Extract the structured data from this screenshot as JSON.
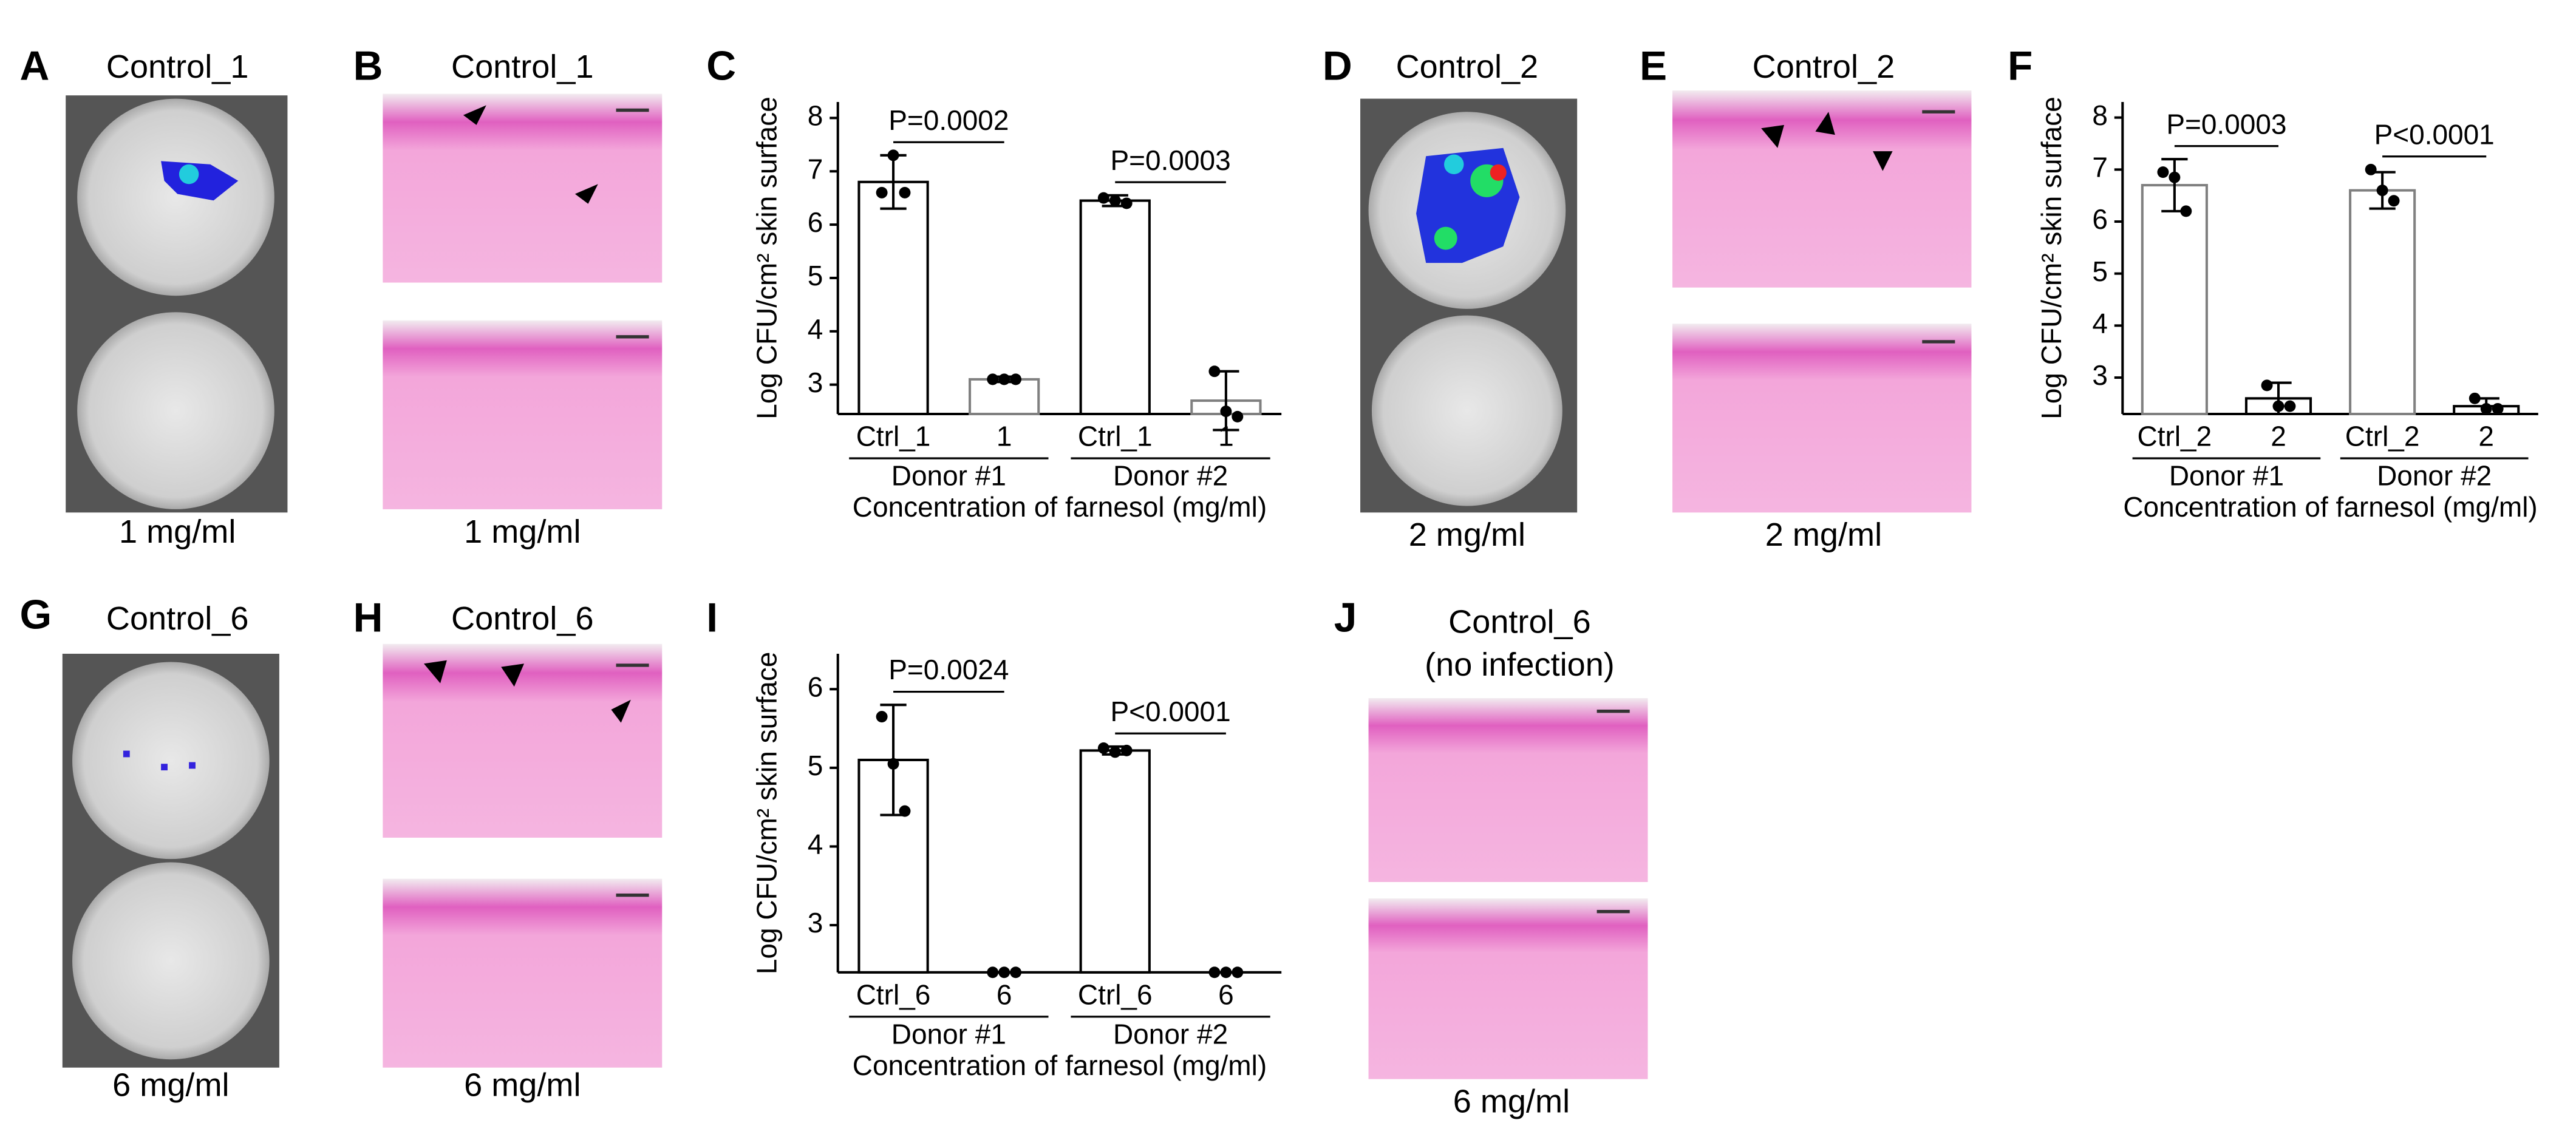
{
  "chart_data": [
    {
      "type": "bar",
      "panel": "C",
      "ylabel": "Log CFU/cm² skin surface",
      "xlabel": "Concentration of farnesol (mg/ml)",
      "categories": [
        "Ctrl_1",
        "1",
        "Ctrl_1",
        "1"
      ],
      "groups": [
        "Donor #1",
        "Donor #2"
      ],
      "values": [
        6.8,
        3.1,
        6.45,
        2.7
      ],
      "errors": [
        0.5,
        0.05,
        0.1,
        0.55
      ],
      "points": [
        [
          6.6,
          7.3,
          6.6
        ],
        [
          3.1,
          3.1,
          3.1
        ],
        [
          6.5,
          6.45,
          6.4
        ],
        [
          3.25,
          2.5,
          2.4
        ]
      ],
      "pvalues": [
        "P=0.0002",
        "P=0.0003"
      ],
      "ylim": [
        2.45,
        8.3
      ],
      "yticks": [
        3,
        4,
        5,
        6,
        7,
        8
      ],
      "colors": [
        "#000000",
        "#808080"
      ]
    },
    {
      "type": "bar",
      "panel": "F",
      "ylabel": "Log CFU/cm² skin surface",
      "xlabel": "Concentration of farnesol (mg/ml)",
      "categories": [
        "Ctrl_2",
        "2",
        "Ctrl_2",
        "2"
      ],
      "groups": [
        "Donor #1",
        "Donor #2"
      ],
      "values": [
        6.7,
        2.6,
        6.6,
        2.45
      ],
      "errors": [
        0.5,
        0.3,
        0.35,
        0.15
      ],
      "points": [
        [
          6.95,
          6.85,
          6.2
        ],
        [
          2.85,
          2.45,
          2.45
        ],
        [
          7.0,
          6.6,
          6.4
        ],
        [
          2.6,
          2.4,
          2.4
        ]
      ],
      "pvalues": [
        "P=0.0003",
        "P<0.0001"
      ],
      "ylim": [
        2.3,
        8.3
      ],
      "yticks": [
        3,
        4,
        5,
        6,
        7,
        8
      ],
      "colors": [
        "#808080",
        "#000000"
      ]
    },
    {
      "type": "bar",
      "panel": "I",
      "ylabel": "Log CFU/cm² skin surface",
      "xlabel": "Concentration of farnesol (mg/ml)",
      "categories": [
        "Ctrl_6",
        "6",
        "Ctrl_6",
        "6"
      ],
      "groups": [
        "Donor #1",
        "Donor #2"
      ],
      "values": [
        5.1,
        2.4,
        5.22,
        2.4
      ],
      "errors": [
        0.7,
        0,
        0.05,
        0
      ],
      "points": [
        [
          5.65,
          5.05,
          4.45
        ],
        [
          2.4,
          2.4,
          2.4
        ],
        [
          5.25,
          5.2,
          5.22
        ],
        [
          2.4,
          2.4,
          2.4
        ]
      ],
      "pvalues": [
        "P=0.0024",
        "P<0.0001"
      ],
      "ylim": [
        2.4,
        6.45
      ],
      "yticks": [
        3,
        4,
        5,
        6
      ],
      "colors": [
        "#000000",
        "#808080"
      ]
    }
  ],
  "panels": [
    {
      "letter": "A",
      "title": "Control_1",
      "caption": "1 mg/ml"
    },
    {
      "letter": "B",
      "title": "Control_1",
      "caption": "1 mg/ml"
    },
    {
      "letter": "D",
      "title": "Control_2",
      "caption": "2 mg/ml"
    },
    {
      "letter": "E",
      "title": "Control_2",
      "caption": "2 mg/ml"
    },
    {
      "letter": "G",
      "title": "Control_6",
      "caption": "6 mg/ml"
    },
    {
      "letter": "H",
      "title": "Control_6",
      "caption": "6 mg/ml"
    },
    {
      "letter": "J",
      "title": "Control_6",
      "subtitle": "(no infection)",
      "caption": "6 mg/ml"
    }
  ]
}
